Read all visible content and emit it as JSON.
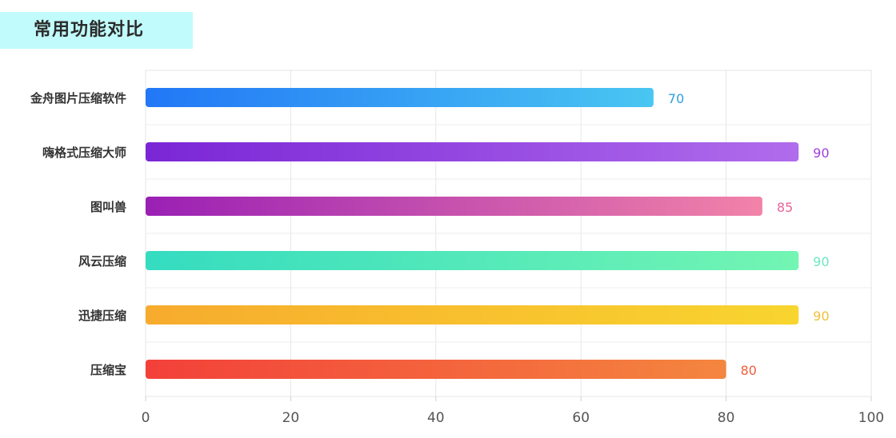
{
  "title": "常用功能对比",
  "chart_data": {
    "type": "bar",
    "orientation": "horizontal",
    "categories": [
      "金舟图片压缩软件",
      "嗨格式压缩大师",
      "图叫兽",
      "风云压缩",
      "迅捷压缩",
      "压缩宝"
    ],
    "values": [
      70,
      90,
      85,
      90,
      90,
      80
    ],
    "xlim": [
      0,
      100
    ],
    "x_ticks": [
      "0",
      "20",
      "40",
      "60",
      "80",
      "100"
    ],
    "grid": true,
    "bar_colors": [
      [
        "#2277f6",
        "#49c6f2"
      ],
      [
        "#7a26d6",
        "#b06cec"
      ],
      [
        "#9a20b4",
        "#f283a8"
      ],
      [
        "#35dcc0",
        "#73f5b3"
      ],
      [
        "#f7ab2e",
        "#f8d52f"
      ],
      [
        "#f3403a",
        "#f4863f"
      ]
    ],
    "label_colors": [
      "#2e9fe0",
      "#a03fdc",
      "#e8649a",
      "#6fe6c4",
      "#f1c03a",
      "#ef5e3a"
    ]
  }
}
